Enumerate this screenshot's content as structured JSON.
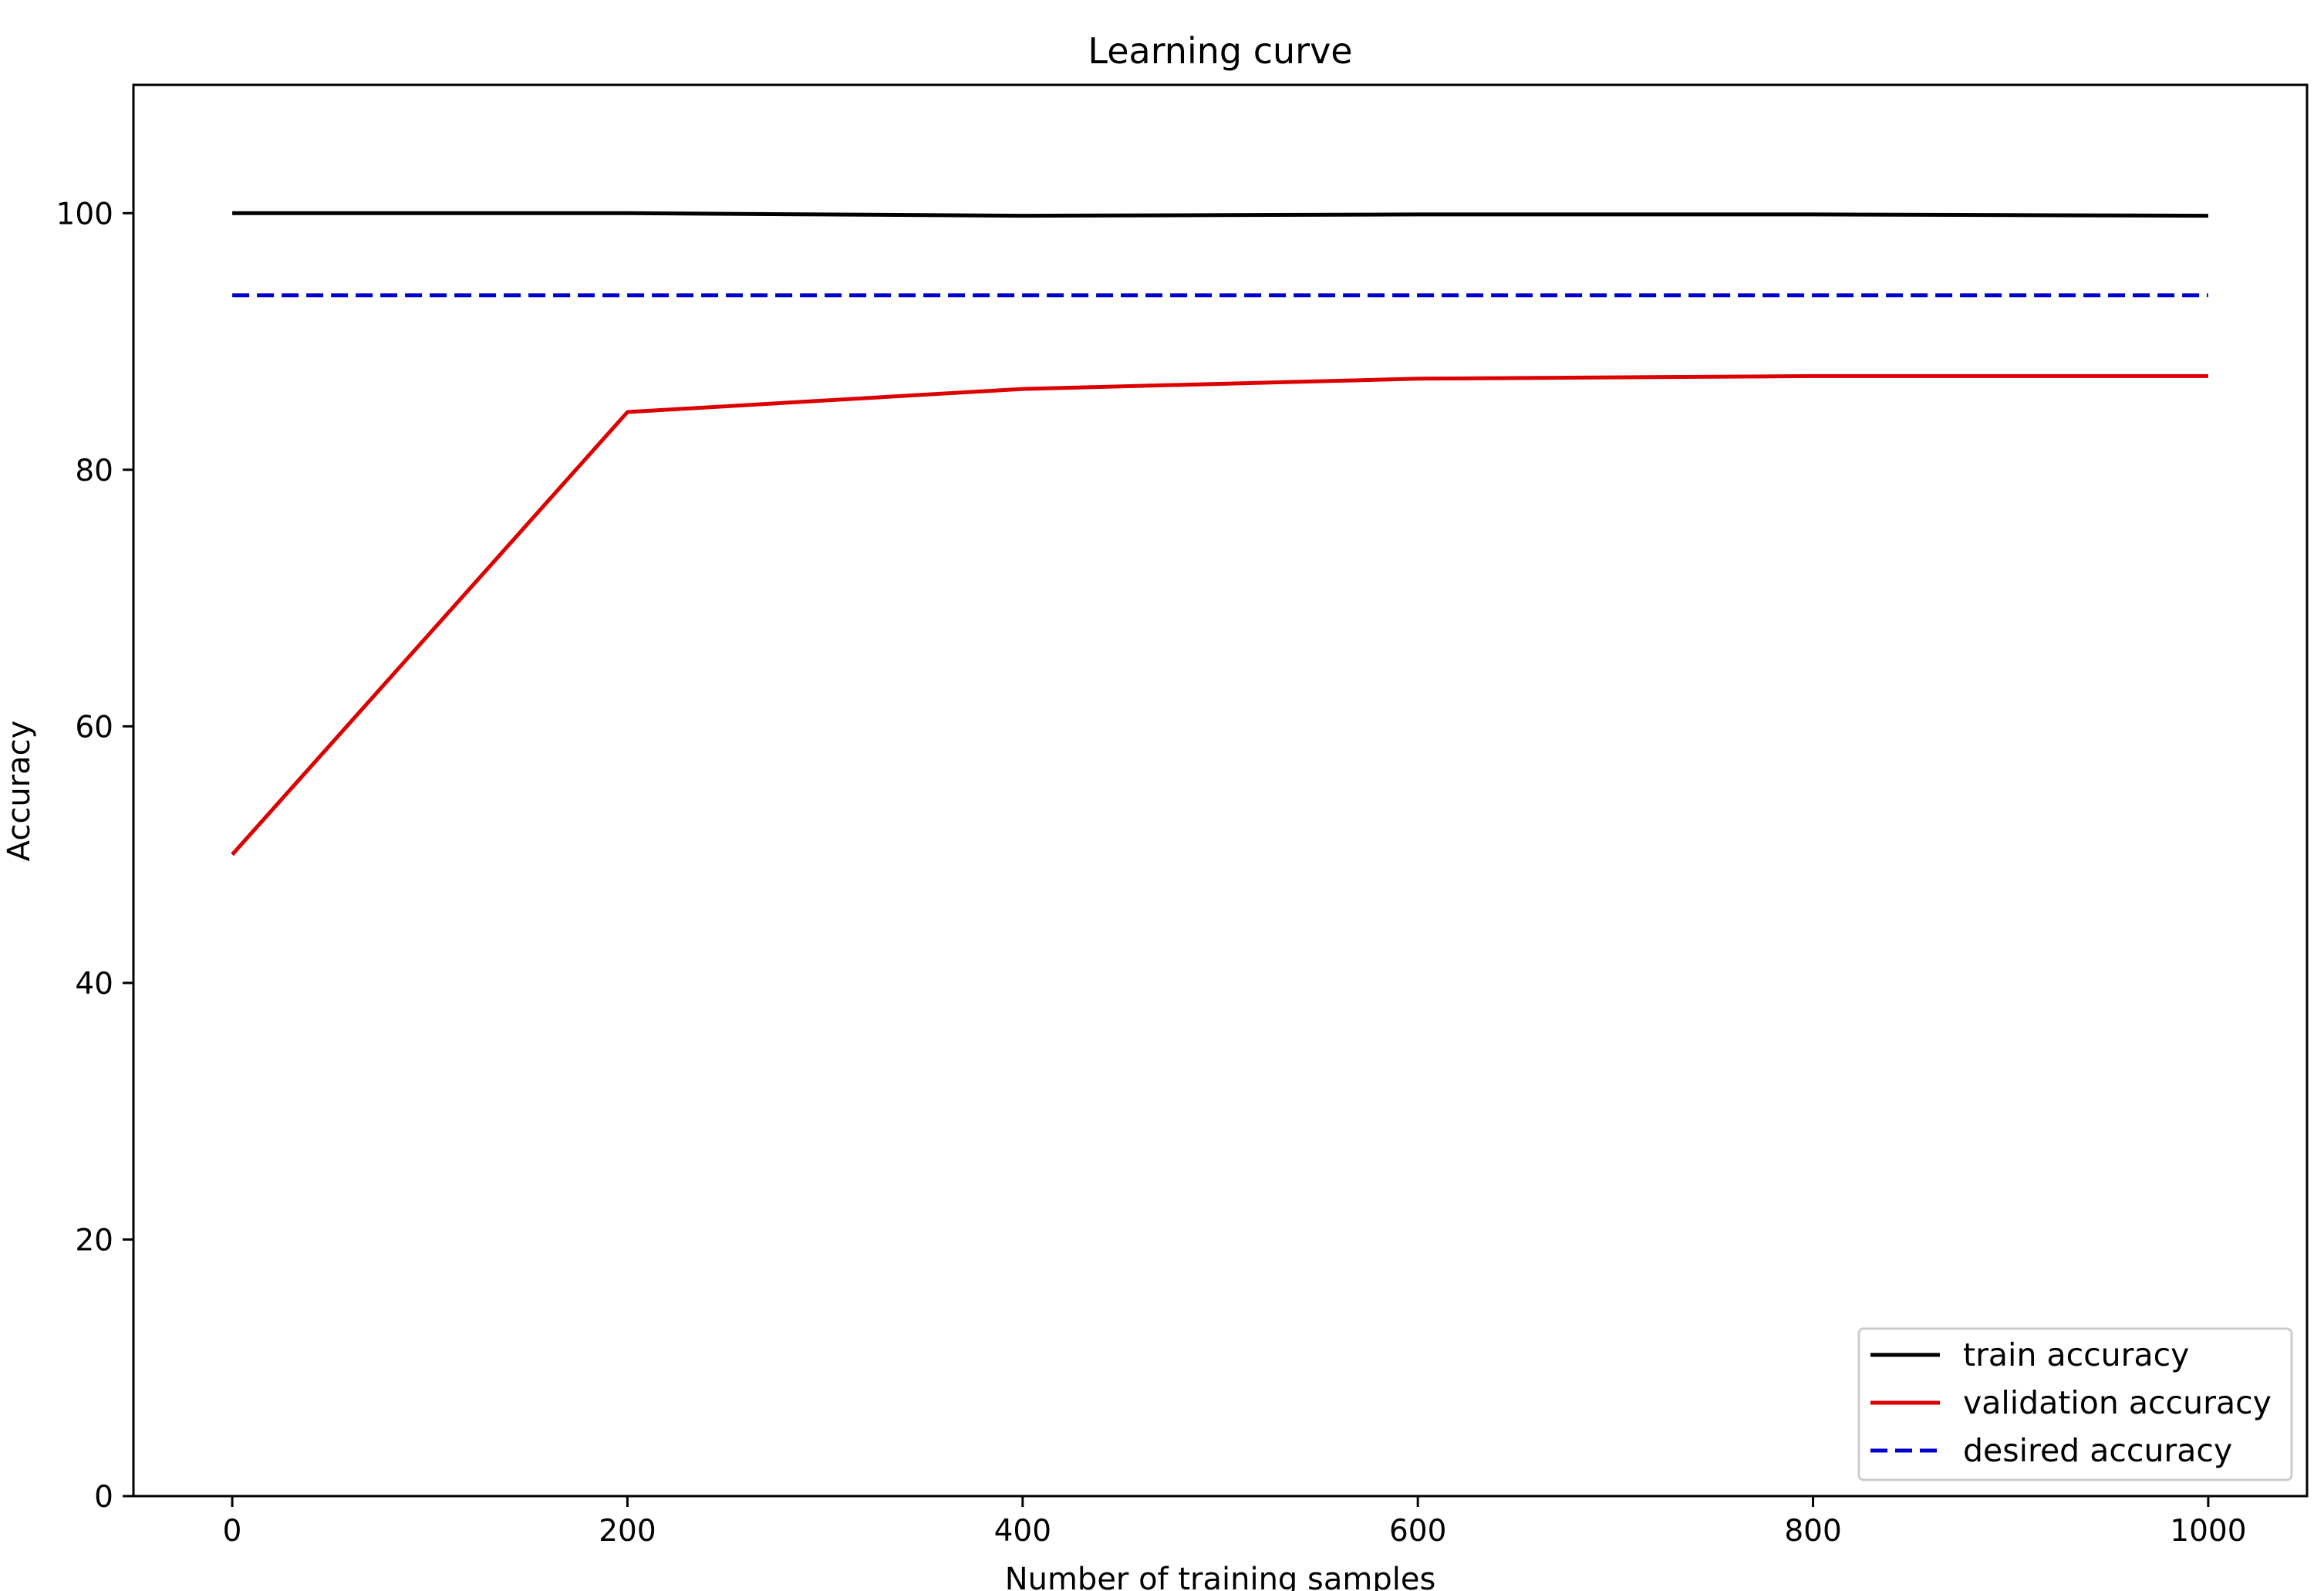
{
  "chart_data": {
    "type": "line",
    "title": "Learning curve",
    "xlabel": "Number of training samples",
    "ylabel": "Accuracy",
    "xlim": [
      -50,
      1050
    ],
    "ylim": [
      0,
      110
    ],
    "xticks": [
      0,
      200,
      400,
      600,
      800,
      1000
    ],
    "yticks": [
      0,
      20,
      40,
      60,
      80,
      100
    ],
    "xtick_labels": [
      "0",
      "200",
      "400",
      "600",
      "800",
      "1000"
    ],
    "ytick_labels": [
      "0",
      "20",
      "40",
      "60",
      "80",
      "100"
    ],
    "grid": false,
    "legend_position": "bottom-right",
    "x": [
      0,
      200,
      400,
      600,
      800,
      1000
    ],
    "series": [
      {
        "name": "train accuracy",
        "color": "#000000",
        "style": "solid",
        "values": [
          100.0,
          100.0,
          99.8,
          99.9,
          99.9,
          99.8
        ]
      },
      {
        "name": "validation accuracy",
        "color": "#dd0000",
        "style": "solid",
        "values": [
          50.0,
          84.5,
          86.3,
          87.1,
          87.3,
          87.3
        ]
      },
      {
        "name": "desired accuracy",
        "color": "#0000cc",
        "style": "dashed",
        "values": [
          93.6,
          93.6,
          93.6,
          93.6,
          93.6,
          93.6
        ]
      }
    ]
  }
}
